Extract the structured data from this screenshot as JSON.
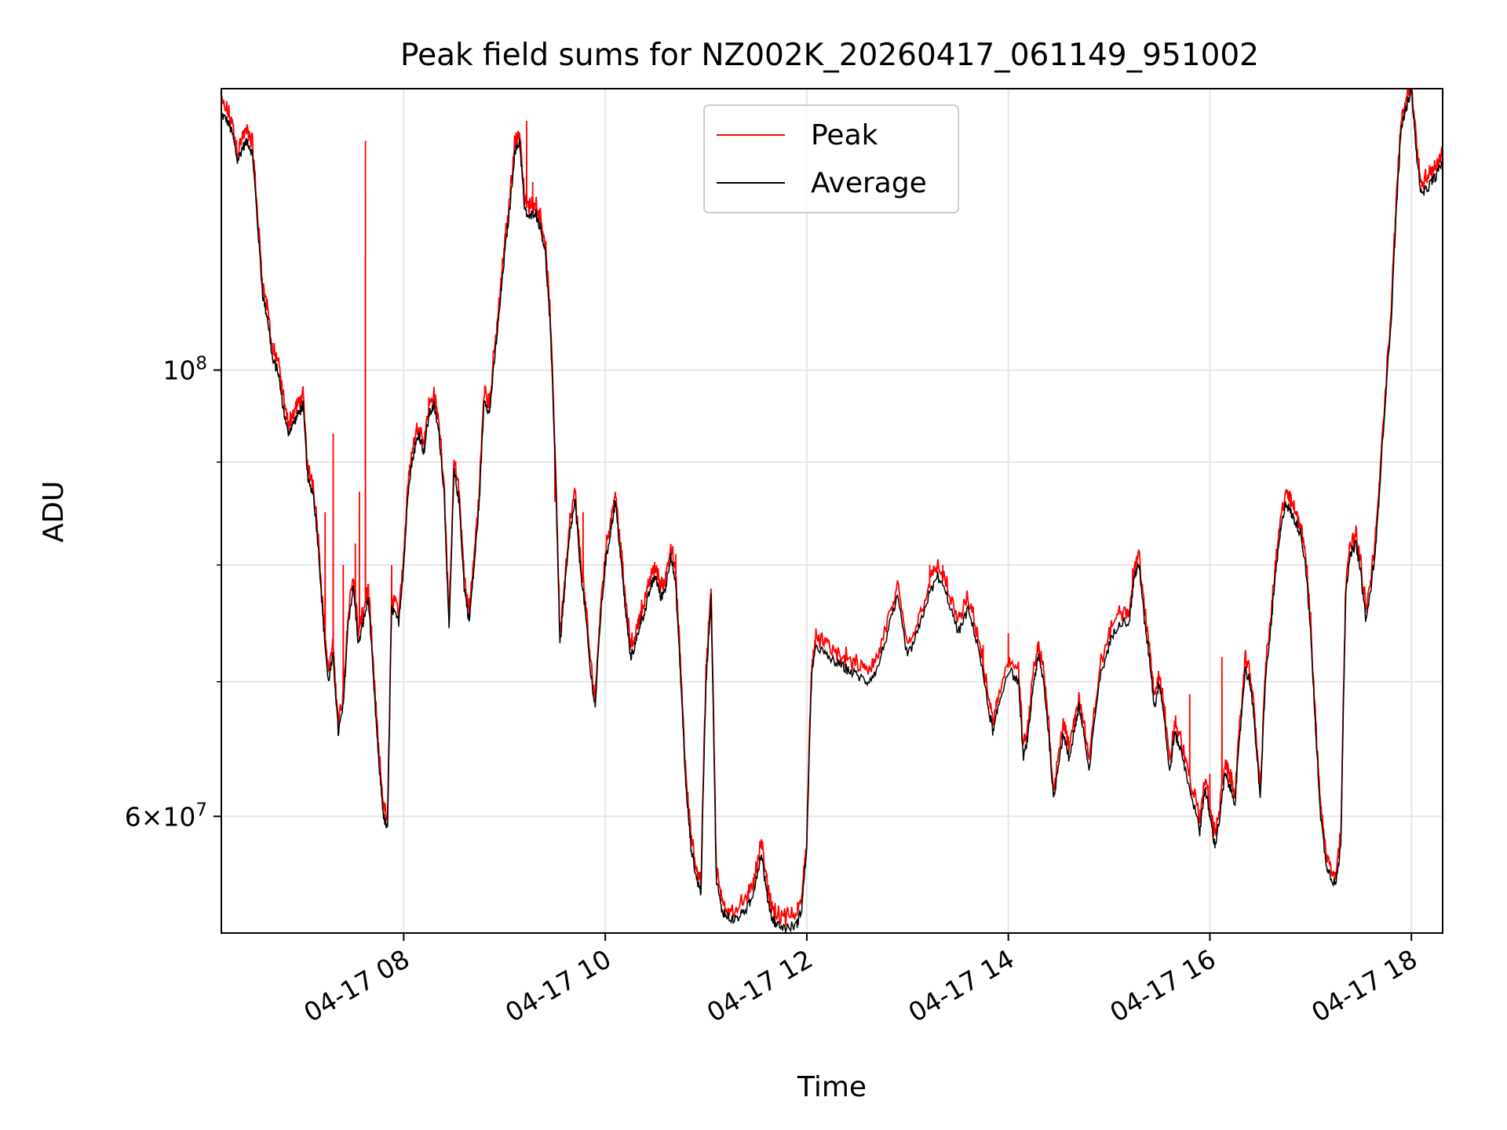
{
  "chart_data": {
    "type": "line",
    "title": "Peak field sums for NZ002K_20260417_061149_951002",
    "xlabel": "Time",
    "ylabel": "ADU",
    "yscale": "log",
    "ylim": [
      52500000,
      138000000
    ],
    "xlim_hours": [
      6.19,
      18.31
    ],
    "grid": true,
    "legend_position": "upper center",
    "x_ticks": [
      {
        "hour": 8,
        "label": "04-17 08"
      },
      {
        "hour": 10,
        "label": "04-17 10"
      },
      {
        "hour": 12,
        "label": "04-17 12"
      },
      {
        "hour": 14,
        "label": "04-17 14"
      },
      {
        "hour": 16,
        "label": "04-17 16"
      },
      {
        "hour": 18,
        "label": "04-17 18"
      }
    ],
    "y_ticks": [
      {
        "value": 100000000,
        "base": "10",
        "exp": "8",
        "coef": ""
      },
      {
        "value": 60000000,
        "base": "10",
        "exp": "7",
        "coef": "6×"
      }
    ],
    "y_minor_ticks": [
      70000000,
      80000000,
      90000000
    ],
    "series": [
      {
        "name": "Peak",
        "color": "#ff0000"
      },
      {
        "name": "Average",
        "color": "#000000"
      }
    ],
    "average_points": [
      [
        6.19,
        134
      ],
      [
        6.25,
        133
      ],
      [
        6.3,
        131
      ],
      [
        6.35,
        127
      ],
      [
        6.4,
        129
      ],
      [
        6.45,
        130
      ],
      [
        6.5,
        128
      ],
      [
        6.55,
        118
      ],
      [
        6.6,
        109
      ],
      [
        6.65,
        106
      ],
      [
        6.7,
        101
      ],
      [
        6.75,
        100
      ],
      [
        6.8,
        96
      ],
      [
        6.85,
        93
      ],
      [
        6.9,
        94
      ],
      [
        6.95,
        95
      ],
      [
        7.0,
        96
      ],
      [
        7.05,
        88
      ],
      [
        7.1,
        87
      ],
      [
        7.15,
        82
      ],
      [
        7.2,
        75
      ],
      [
        7.25,
        70
      ],
      [
        7.3,
        72
      ],
      [
        7.35,
        66
      ],
      [
        7.4,
        68
      ],
      [
        7.45,
        75
      ],
      [
        7.5,
        78
      ],
      [
        7.55,
        73
      ],
      [
        7.6,
        75
      ],
      [
        7.65,
        77
      ],
      [
        7.7,
        70
      ],
      [
        7.75,
        64
      ],
      [
        7.8,
        60
      ],
      [
        7.84,
        59
      ],
      [
        7.88,
        76
      ],
      [
        7.95,
        75
      ],
      [
        8.0,
        80
      ],
      [
        8.05,
        88
      ],
      [
        8.1,
        91
      ],
      [
        8.15,
        93
      ],
      [
        8.2,
        91
      ],
      [
        8.25,
        95
      ],
      [
        8.3,
        96
      ],
      [
        8.35,
        93
      ],
      [
        8.4,
        87
      ],
      [
        8.45,
        74
      ],
      [
        8.5,
        89
      ],
      [
        8.55,
        86
      ],
      [
        8.6,
        78
      ],
      [
        8.65,
        75
      ],
      [
        8.7,
        80
      ],
      [
        8.75,
        86
      ],
      [
        8.8,
        97
      ],
      [
        8.85,
        95
      ],
      [
        8.9,
        101
      ],
      [
        8.95,
        107
      ],
      [
        9.0,
        114
      ],
      [
        9.05,
        120
      ],
      [
        9.1,
        128
      ],
      [
        9.15,
        130
      ],
      [
        9.2,
        120
      ],
      [
        9.25,
        119
      ],
      [
        9.3,
        120
      ],
      [
        9.35,
        118
      ],
      [
        9.4,
        115
      ],
      [
        9.45,
        106
      ],
      [
        9.5,
        91
      ],
      [
        9.55,
        73
      ],
      [
        9.6,
        78
      ],
      [
        9.65,
        83
      ],
      [
        9.7,
        86
      ],
      [
        9.75,
        80
      ],
      [
        9.8,
        76
      ],
      [
        9.85,
        71
      ],
      [
        9.9,
        68
      ],
      [
        9.95,
        75
      ],
      [
        10.0,
        80
      ],
      [
        10.05,
        83
      ],
      [
        10.1,
        86
      ],
      [
        10.15,
        81
      ],
      [
        10.2,
        76
      ],
      [
        10.25,
        72
      ],
      [
        10.3,
        73
      ],
      [
        10.35,
        75
      ],
      [
        10.4,
        76
      ],
      [
        10.45,
        78
      ],
      [
        10.5,
        79
      ],
      [
        10.55,
        77
      ],
      [
        10.6,
        78
      ],
      [
        10.65,
        81
      ],
      [
        10.7,
        78
      ],
      [
        10.75,
        70
      ],
      [
        10.8,
        62
      ],
      [
        10.85,
        58
      ],
      [
        10.9,
        56
      ],
      [
        10.95,
        55
      ],
      [
        11.0,
        70
      ],
      [
        11.05,
        77
      ],
      [
        11.1,
        56
      ],
      [
        11.15,
        54
      ],
      [
        11.2,
        53.5
      ],
      [
        11.3,
        53.3
      ],
      [
        11.4,
        54
      ],
      [
        11.45,
        54.5
      ],
      [
        11.5,
        56
      ],
      [
        11.55,
        57.5
      ],
      [
        11.6,
        55
      ],
      [
        11.65,
        53.5
      ],
      [
        11.7,
        53
      ],
      [
        11.8,
        52.8
      ],
      [
        11.9,
        53
      ],
      [
        11.95,
        54
      ],
      [
        12.0,
        58
      ],
      [
        12.05,
        71
      ],
      [
        12.1,
        73
      ],
      [
        12.2,
        72
      ],
      [
        12.3,
        71.5
      ],
      [
        12.4,
        71
      ],
      [
        12.5,
        70.5
      ],
      [
        12.6,
        70
      ],
      [
        12.7,
        71
      ],
      [
        12.8,
        74
      ],
      [
        12.9,
        77
      ],
      [
        13.0,
        72
      ],
      [
        13.1,
        74
      ],
      [
        13.2,
        77
      ],
      [
        13.3,
        79
      ],
      [
        13.4,
        77
      ],
      [
        13.5,
        74
      ],
      [
        13.6,
        76
      ],
      [
        13.7,
        73
      ],
      [
        13.8,
        68
      ],
      [
        13.85,
        66
      ],
      [
        13.9,
        68
      ],
      [
        14.0,
        71
      ],
      [
        14.1,
        70
      ],
      [
        14.15,
        64
      ],
      [
        14.2,
        66
      ],
      [
        14.25,
        70
      ],
      [
        14.3,
        72
      ],
      [
        14.35,
        70
      ],
      [
        14.4,
        66
      ],
      [
        14.45,
        61
      ],
      [
        14.5,
        64
      ],
      [
        14.55,
        66
      ],
      [
        14.6,
        64
      ],
      [
        14.65,
        66
      ],
      [
        14.7,
        68
      ],
      [
        14.75,
        66
      ],
      [
        14.8,
        63
      ],
      [
        14.9,
        70
      ],
      [
        15.0,
        73
      ],
      [
        15.1,
        75
      ],
      [
        15.2,
        75
      ],
      [
        15.25,
        79
      ],
      [
        15.3,
        80
      ],
      [
        15.35,
        75
      ],
      [
        15.4,
        72
      ],
      [
        15.45,
        68
      ],
      [
        15.5,
        70
      ],
      [
        15.55,
        67
      ],
      [
        15.6,
        63
      ],
      [
        15.65,
        66
      ],
      [
        15.7,
        65
      ],
      [
        15.8,
        62
      ],
      [
        15.9,
        59
      ],
      [
        15.95,
        62
      ],
      [
        16.0,
        60
      ],
      [
        16.05,
        58
      ],
      [
        16.1,
        60
      ],
      [
        16.15,
        63
      ],
      [
        16.2,
        62
      ],
      [
        16.25,
        61
      ],
      [
        16.3,
        66
      ],
      [
        16.35,
        71
      ],
      [
        16.4,
        70
      ],
      [
        16.45,
        66
      ],
      [
        16.5,
        61
      ],
      [
        16.55,
        70
      ],
      [
        16.6,
        74
      ],
      [
        16.65,
        79
      ],
      [
        16.7,
        83
      ],
      [
        16.75,
        86
      ],
      [
        16.8,
        85
      ],
      [
        16.85,
        84
      ],
      [
        16.9,
        83
      ],
      [
        16.95,
        80
      ],
      [
        17.0,
        74
      ],
      [
        17.05,
        66
      ],
      [
        17.1,
        60
      ],
      [
        17.15,
        57
      ],
      [
        17.2,
        56
      ],
      [
        17.25,
        55.5
      ],
      [
        17.3,
        58
      ],
      [
        17.35,
        78
      ],
      [
        17.4,
        81
      ],
      [
        17.45,
        82
      ],
      [
        17.5,
        79
      ],
      [
        17.55,
        75
      ],
      [
        17.6,
        78
      ],
      [
        17.65,
        82
      ],
      [
        17.7,
        90
      ],
      [
        17.8,
        106
      ],
      [
        17.85,
        120
      ],
      [
        17.9,
        132
      ],
      [
        17.95,
        135
      ],
      [
        18.0,
        138
      ],
      [
        18.05,
        128
      ],
      [
        18.1,
        122
      ],
      [
        18.15,
        123
      ],
      [
        18.2,
        124
      ],
      [
        18.25,
        125
      ],
      [
        18.31,
        127
      ]
    ],
    "peak_spikes": [
      [
        7.62,
        130
      ],
      [
        7.56,
        87
      ],
      [
        7.3,
        93
      ],
      [
        7.22,
        85
      ],
      [
        7.4,
        80
      ],
      [
        7.52,
        82
      ],
      [
        7.88,
        80
      ],
      [
        9.22,
        133
      ],
      [
        9.28,
        124
      ],
      [
        9.5,
        86
      ],
      [
        9.78,
        85
      ],
      [
        10.1,
        87
      ],
      [
        10.7,
        81
      ],
      [
        13.22,
        80
      ],
      [
        13.35,
        80
      ],
      [
        13.75,
        73
      ],
      [
        14.0,
        74
      ],
      [
        15.8,
        69
      ],
      [
        16.12,
        72
      ],
      [
        16.0,
        63
      ]
    ]
  }
}
